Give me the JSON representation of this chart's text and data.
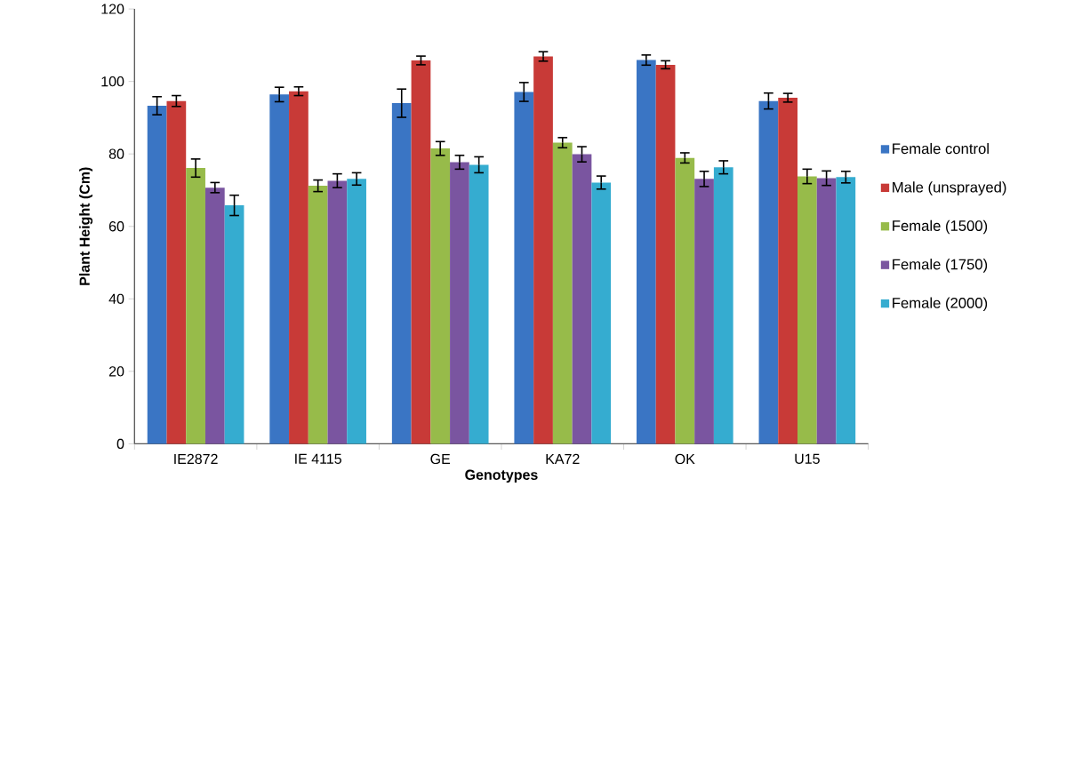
{
  "chart_data": {
    "type": "bar",
    "xlabel": "Genotypes",
    "ylabel": "Plant Height (Cm)",
    "categories": [
      "IE2872",
      "IE 4115",
      "GE",
      "KA72",
      "OK",
      "U15"
    ],
    "ylim": [
      0,
      120
    ],
    "yticks": [
      0,
      20,
      40,
      60,
      80,
      100,
      120
    ],
    "grid": false,
    "legend": "right",
    "series": [
      {
        "name": "Female control",
        "color": "#3a75c4",
        "values": [
          93.3,
          96.4,
          94.0,
          97.1,
          105.9,
          94.6
        ],
        "errors": [
          2.5,
          2.0,
          3.9,
          2.6,
          1.4,
          2.2
        ]
      },
      {
        "name": "Male (unsprayed)",
        "color": "#c83a37",
        "values": [
          94.6,
          97.3,
          105.8,
          106.9,
          104.6,
          95.5
        ],
        "errors": [
          1.5,
          1.2,
          1.2,
          1.3,
          1.1,
          1.2
        ]
      },
      {
        "name": "Female (1500)",
        "color": "#97bb4a",
        "values": [
          76.1,
          71.2,
          81.5,
          83.1,
          78.9,
          73.8
        ],
        "errors": [
          2.5,
          1.6,
          1.9,
          1.4,
          1.4,
          2.0
        ]
      },
      {
        "name": "Female (1750)",
        "color": "#7a55a0",
        "values": [
          70.7,
          72.6,
          77.7,
          79.9,
          73.1,
          73.3
        ],
        "errors": [
          1.4,
          1.9,
          1.9,
          2.1,
          2.1,
          2.0
        ]
      },
      {
        "name": "Female (2000)",
        "color": "#35acd0",
        "values": [
          65.8,
          73.1,
          77.0,
          72.1,
          76.3,
          73.6
        ],
        "errors": [
          2.8,
          1.7,
          2.2,
          1.8,
          1.8,
          1.6
        ]
      }
    ]
  }
}
